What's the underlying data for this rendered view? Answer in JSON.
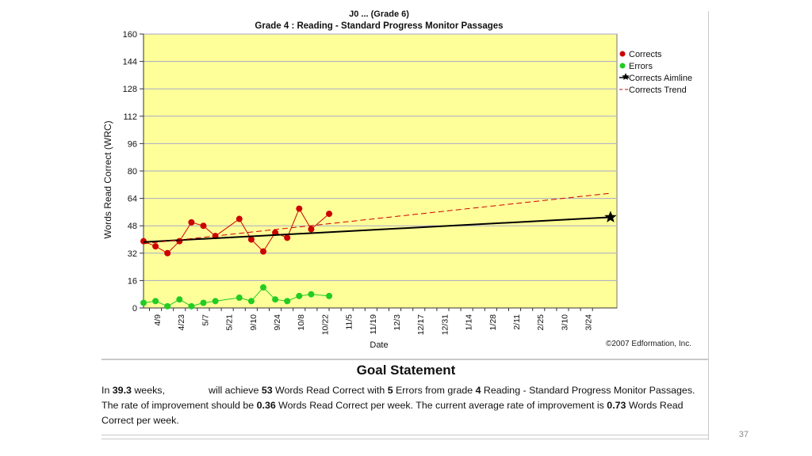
{
  "chart_data": {
    "type": "line",
    "title_line1": "J0 ... (Grade 6)",
    "title": "Grade 4 : Reading - Standard Progress Monitor Passages",
    "xlabel": "Date",
    "ylabel": "Words Read Correct (WRC)",
    "ylim": [
      0,
      160
    ],
    "yticks": [
      0,
      16,
      32,
      48,
      64,
      80,
      96,
      112,
      128,
      144,
      160
    ],
    "xticks": [
      "4/9",
      "4/23",
      "5/7",
      "5/21",
      "9/10",
      "9/24",
      "10/8",
      "10/22",
      "11/5",
      "11/19",
      "12/3",
      "12/17",
      "12/31",
      "1/14",
      "1/28",
      "2/11",
      "2/25",
      "3/10",
      "3/24"
    ],
    "grid": true,
    "legend_position": "right",
    "series": [
      {
        "name": "Corrects",
        "color": "#cc0000",
        "marker": "circle",
        "x": [
          0,
          0.5,
          1,
          1.5,
          2,
          2.5,
          3,
          4,
          4.5,
          5,
          5.5,
          6,
          6.5,
          7,
          7.75
        ],
        "y": [
          39,
          36,
          32,
          39,
          50,
          48,
          42,
          52,
          40,
          33,
          44,
          41,
          58,
          46,
          55
        ]
      },
      {
        "name": "Errors",
        "color": "#22cc22",
        "marker": "circle",
        "x": [
          0,
          0.5,
          1,
          1.5,
          2,
          2.5,
          3,
          4,
          4.5,
          5,
          5.5,
          6,
          6.5,
          7,
          7.75
        ],
        "y": [
          3,
          4,
          1,
          5,
          1,
          3,
          4,
          6,
          4,
          12,
          5,
          4,
          7,
          8,
          7
        ]
      },
      {
        "name": "Corrects Aimline",
        "color": "#000000",
        "marker": "star",
        "x": [
          0,
          19.5
        ],
        "y": [
          38.5,
          53
        ]
      },
      {
        "name": "Corrects Trend",
        "color": "#cc0000",
        "dash": true,
        "x": [
          0,
          19.5
        ],
        "y": [
          37.5,
          67
        ]
      }
    ]
  },
  "copyright": "©2007 Edformation, Inc.",
  "goal": {
    "title": "Goal Statement",
    "p1": "In ",
    "weeks": "39.3",
    "p2": " weeks, ",
    "p3": " will achieve ",
    "wrc": "53",
    "p4": " Words Read Correct with ",
    "errors": "5",
    "p5": " Errors from grade ",
    "grade": "4",
    "p6": " Reading - Standard Progress Monitor Passages.  The rate of improvement should be ",
    "rate_goal": "0.36",
    "p7": " Words Read Correct per week. The current average rate of improvement is ",
    "rate_current": "0.73",
    "p8": " Words Read Correct per week."
  },
  "slide_number": "37"
}
